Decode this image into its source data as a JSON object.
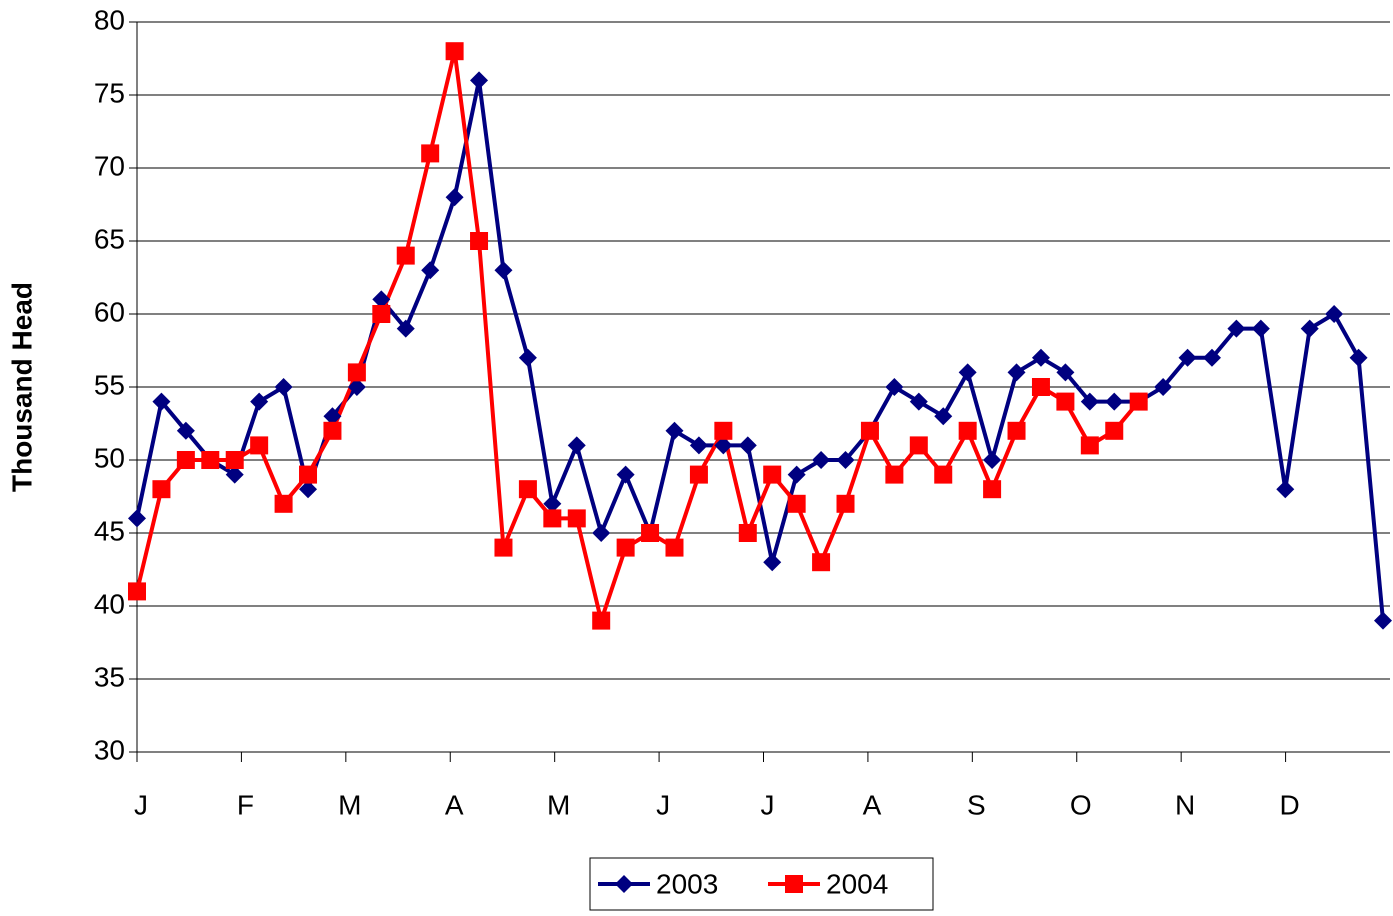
{
  "chart_data": {
    "type": "line",
    "y_label": "Thousand Head",
    "categories": [
      "J",
      null,
      null,
      null,
      "F",
      null,
      null,
      null,
      null,
      "M",
      null,
      null,
      null,
      "A",
      null,
      null,
      null,
      "M",
      null,
      null,
      null,
      null,
      "J",
      null,
      null,
      null,
      "J",
      null,
      null,
      null,
      "A",
      null,
      null,
      null,
      null,
      "S",
      null,
      null,
      null,
      "O",
      null,
      null,
      null,
      "N",
      null,
      null,
      null,
      null,
      "D",
      null,
      null,
      null
    ],
    "series": [
      {
        "name": "2003",
        "color": "#000080",
        "marker": "diamond",
        "values": [
          46,
          54,
          52,
          50,
          49,
          54,
          55,
          48,
          53,
          55,
          61,
          59,
          63,
          68,
          76,
          63,
          57,
          47,
          51,
          45,
          49,
          45,
          52,
          51,
          51,
          51,
          43,
          49,
          50,
          50,
          52,
          55,
          54,
          53,
          56,
          50,
          56,
          57,
          56,
          54,
          54,
          54,
          55,
          57,
          57,
          59,
          59,
          48,
          59,
          60,
          57,
          39
        ]
      },
      {
        "name": "2004",
        "color": "#ff0000",
        "marker": "square",
        "values": [
          41,
          48,
          50,
          50,
          50,
          51,
          47,
          49,
          52,
          56,
          60,
          64,
          71,
          78,
          65,
          44,
          48,
          46,
          46,
          39,
          44,
          45,
          44,
          49,
          52,
          45,
          49,
          47,
          43,
          47,
          52,
          49,
          51,
          49,
          52,
          48,
          52,
          55,
          54,
          51,
          52,
          54,
          null,
          null,
          null,
          null,
          null,
          null,
          null,
          null,
          null,
          null
        ]
      }
    ],
    "ylim": [
      30,
      80
    ],
    "yticks": [
      30,
      35,
      40,
      45,
      50,
      55,
      60,
      65,
      70,
      75,
      80
    ],
    "grid": true,
    "legend": "bottom"
  }
}
